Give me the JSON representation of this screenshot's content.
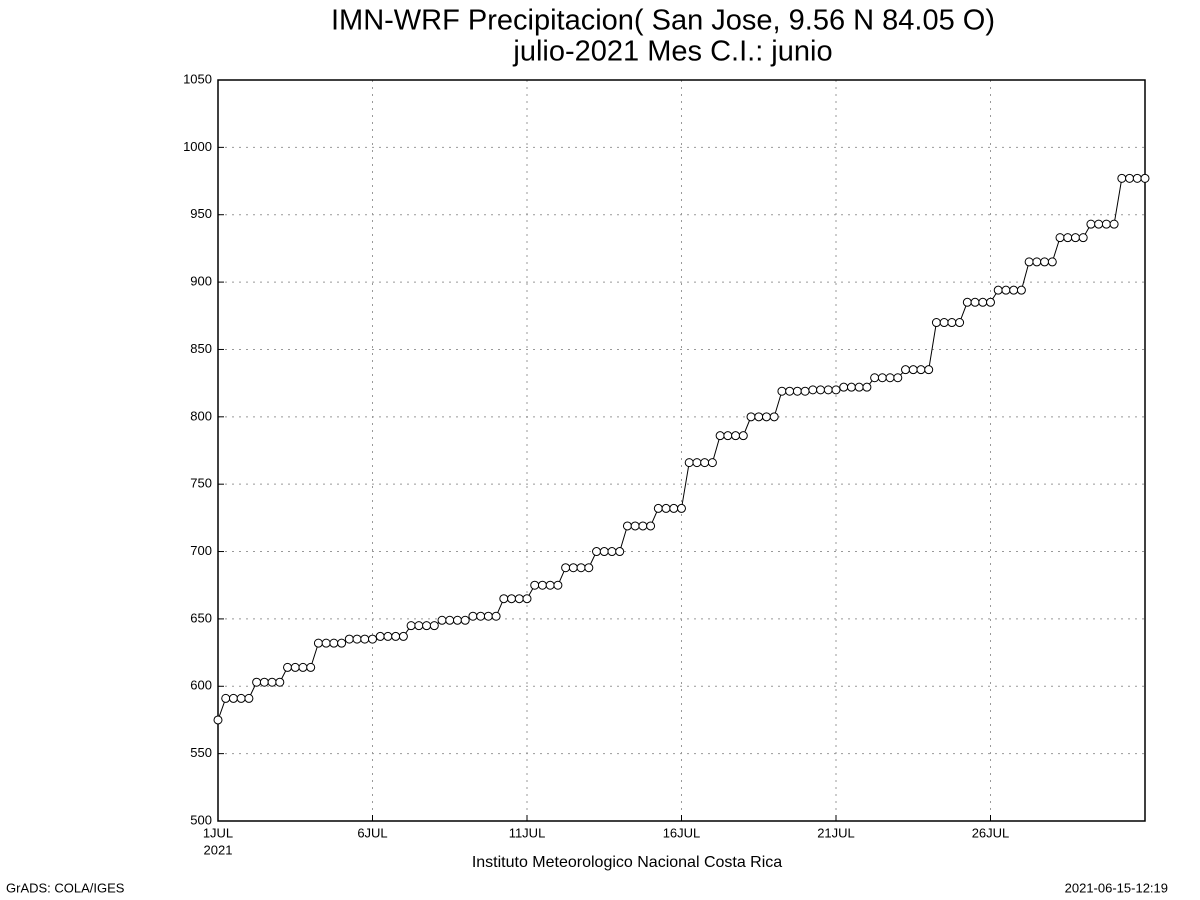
{
  "chart_data": {
    "type": "line",
    "title": "IMN-WRF  Precipitacion( San Jose, 9.56  N 84.05  O)",
    "subtitle": "julio-2021 Mes C.I.: junio",
    "x_label": "Instituto Meteorologico Nacional Costa Rica",
    "year_label": "2021",
    "footer_left": "GrADS: COLA/IGES",
    "footer_right": "2021-06-15-12:19",
    "grid": true,
    "x": [
      1,
      1.25,
      1.5,
      1.75,
      2,
      2.25,
      2.5,
      2.75,
      3,
      3.25,
      3.5,
      3.75,
      4,
      4.25,
      4.5,
      4.75,
      5,
      5.25,
      5.5,
      5.75,
      6,
      6.25,
      6.5,
      6.75,
      7,
      7.25,
      7.5,
      7.75,
      8,
      8.25,
      8.5,
      8.75,
      9,
      9.25,
      9.5,
      9.75,
      10,
      10.25,
      10.5,
      10.75,
      11,
      11.25,
      11.5,
      11.75,
      12,
      12.25,
      12.5,
      12.75,
      13,
      13.25,
      13.5,
      13.75,
      14,
      14.25,
      14.5,
      14.75,
      15,
      15.25,
      15.5,
      15.75,
      16,
      16.25,
      16.5,
      16.75,
      17,
      17.25,
      17.5,
      17.75,
      18,
      18.25,
      18.5,
      18.75,
      19,
      19.25,
      19.5,
      19.75,
      20,
      20.25,
      20.5,
      20.75,
      21,
      21.25,
      21.5,
      21.75,
      22,
      22.25,
      22.5,
      22.75,
      23,
      23.25,
      23.5,
      23.75,
      24,
      24.25,
      24.5,
      24.75,
      25,
      25.25,
      25.5,
      25.75,
      26,
      26.25,
      26.5,
      26.75,
      27,
      27.25,
      27.5,
      27.75,
      28,
      28.25,
      28.5,
      28.75,
      29,
      29.25,
      29.5,
      29.75,
      30,
      30.25,
      30.5,
      30.75,
      31
    ],
    "series": [
      {
        "color": "#000000",
        "values": [
          575,
          591,
          591,
          591,
          591,
          603,
          603,
          603,
          603,
          614,
          614,
          614,
          614,
          632,
          632,
          632,
          632,
          635,
          635,
          635,
          635,
          637,
          637,
          637,
          637,
          645,
          645,
          645,
          645,
          649,
          649,
          649,
          649,
          652,
          652,
          652,
          652,
          665,
          665,
          665,
          665,
          675,
          675,
          675,
          675,
          688,
          688,
          688,
          688,
          700,
          700,
          700,
          700,
          719,
          719,
          719,
          719,
          732,
          732,
          732,
          732,
          766,
          766,
          766,
          766,
          786,
          786,
          786,
          786,
          800,
          800,
          800,
          800,
          819,
          819,
          819,
          819,
          820,
          820,
          820,
          820,
          822,
          822,
          822,
          822,
          829,
          829,
          829,
          829,
          835,
          835,
          835,
          835,
          870,
          870,
          870,
          870,
          885,
          885,
          885,
          885,
          894,
          894,
          894,
          894,
          915,
          915,
          915,
          915,
          933,
          933,
          933,
          933,
          943,
          943,
          943,
          943,
          977,
          977,
          977,
          977
        ]
      }
    ],
    "xlim": [
      1,
      31
    ],
    "xticks": [
      {
        "value": 1,
        "label": "1JUL"
      },
      {
        "value": 6,
        "label": "6JUL"
      },
      {
        "value": 11,
        "label": "11JUL"
      },
      {
        "value": 16,
        "label": "16JUL"
      },
      {
        "value": 21,
        "label": "21JUL"
      },
      {
        "value": 26,
        "label": "26JUL"
      }
    ],
    "ylim": [
      500,
      1050
    ],
    "yticks": [
      500,
      550,
      600,
      650,
      700,
      750,
      800,
      850,
      900,
      950,
      1000,
      1050
    ]
  }
}
